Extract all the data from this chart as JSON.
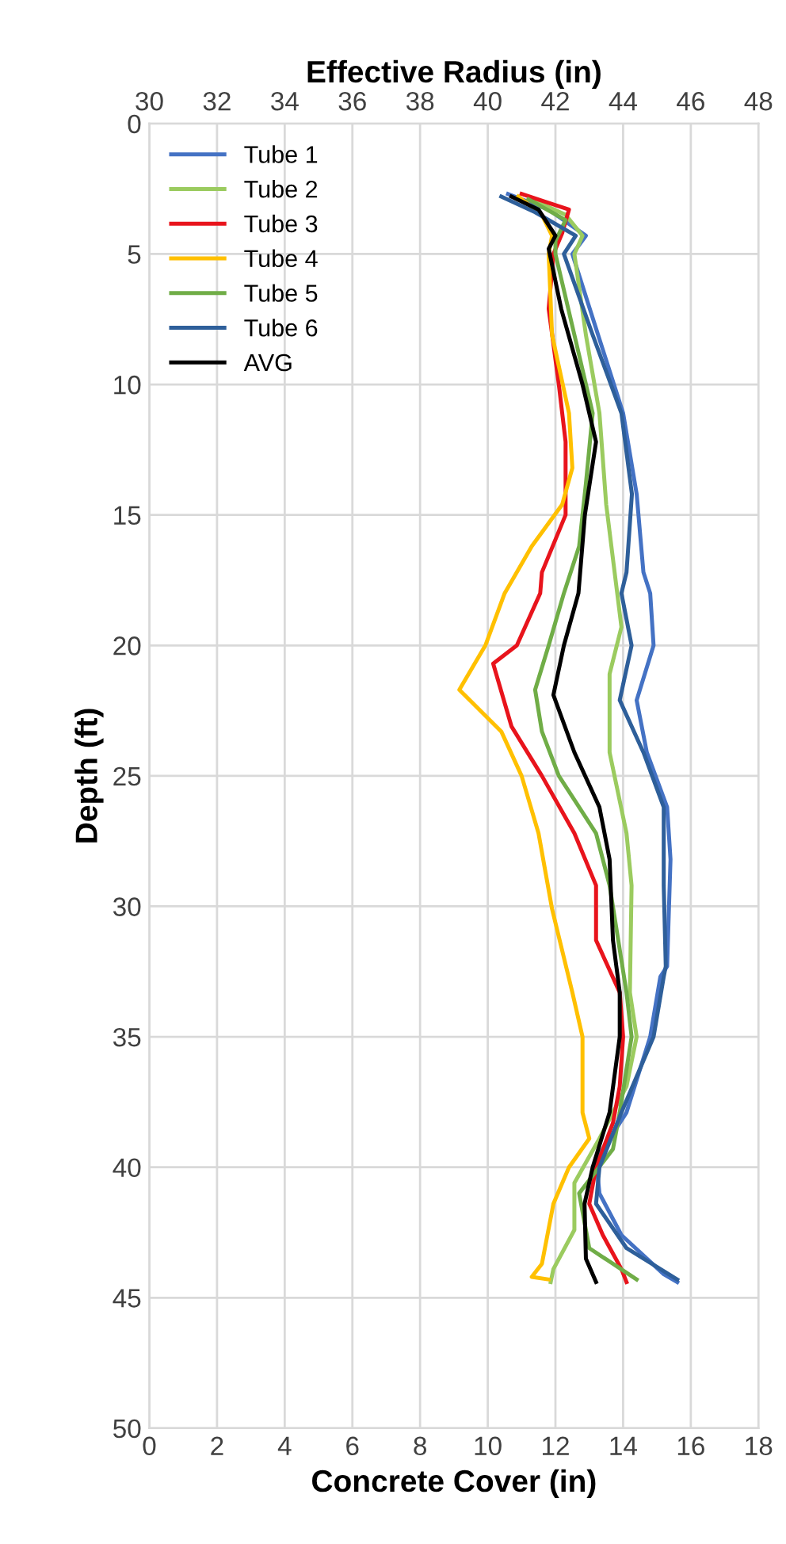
{
  "chart_data": {
    "type": "line",
    "xlabel": "Concrete Cover (in)",
    "x2label": "Effective Radius (in)",
    "ylabel": "Depth (ft)",
    "xlim": [
      0,
      18
    ],
    "xticks": [
      0,
      2,
      4,
      6,
      8,
      10,
      12,
      14,
      16,
      18
    ],
    "x2lim": [
      30,
      48
    ],
    "x2ticks": [
      30,
      32,
      34,
      36,
      38,
      40,
      42,
      44,
      46,
      48
    ],
    "ylim": [
      50,
      0
    ],
    "yticks": [
      0,
      5,
      10,
      15,
      20,
      25,
      30,
      35,
      40,
      45,
      50
    ],
    "grid": true,
    "legend": "top left",
    "marker": "none",
    "line_style": "solid",
    "series": [
      {
        "name": "Tube 1",
        "color": "#4472c4",
        "x": [
          10.6,
          11.8,
          12.9,
          12.5,
          13.26,
          14.0,
          14.4,
          14.6,
          14.8,
          14.9,
          14.4,
          14.7,
          15.3,
          15.4,
          15.3,
          15.1,
          14.8,
          14.1,
          13.2,
          13.3,
          13.95,
          15.2,
          15.6
        ],
        "values": [
          2.7,
          3.3,
          4.3,
          5,
          8.1,
          11.1,
          14.2,
          17.2,
          18.0,
          20,
          22.1,
          24.1,
          26.2,
          28.2,
          32.3,
          32.7,
          35,
          37.9,
          39.7,
          41.0,
          42.6,
          44.1,
          44.4
        ]
      },
      {
        "name": "Tube 2",
        "color": "#9bcb5f",
        "x": [
          11.3,
          12.3,
          12.8,
          12.56,
          12.9,
          13.3,
          13.5,
          13.95,
          13.6,
          13.6,
          14.1,
          14.25,
          14.2,
          14.4,
          14.1,
          13.3,
          12.56,
          12.56,
          11.94,
          11.86
        ],
        "values": [
          2.9,
          3.5,
          4.3,
          5,
          8.1,
          11.1,
          14.6,
          19.3,
          21.1,
          24.1,
          27.2,
          29.2,
          33.3,
          35,
          36.9,
          38.9,
          40.6,
          42.4,
          43.9,
          44.4
        ]
      },
      {
        "name": "Tube 3",
        "color": "#e8141c",
        "x": [
          11.0,
          12.4,
          12.2,
          11.94,
          11.8,
          12.1,
          12.3,
          12.3,
          11.6,
          11.55,
          10.86,
          10.16,
          10.7,
          11.6,
          12.56,
          13.2,
          13.2,
          13.9,
          14.0,
          13.9,
          13.7,
          13.2,
          13.0,
          13.4,
          13.95,
          14.1
        ],
        "values": [
          2.7,
          3.3,
          4.2,
          5,
          7.1,
          10.0,
          12.2,
          15.0,
          17.2,
          18.0,
          20,
          20.7,
          23.1,
          25,
          27.2,
          29.2,
          31.3,
          33.3,
          35,
          36.9,
          38.3,
          40.0,
          41.4,
          42.6,
          43.9,
          44.4
        ]
      },
      {
        "name": "Tube 4",
        "color": "#ffc000",
        "x": [
          10.9,
          11.6,
          11.9,
          11.8,
          11.9,
          12.4,
          12.5,
          12.2,
          11.3,
          10.5,
          9.93,
          9.16,
          10.4,
          11.0,
          11.5,
          11.9,
          12.5,
          12.8,
          12.8,
          13.0,
          12.4,
          11.94,
          11.6,
          11.3,
          11.8
        ],
        "values": [
          2.8,
          3.5,
          4.3,
          5,
          8.1,
          11.1,
          13.2,
          14.6,
          16.2,
          18.0,
          20,
          21.7,
          23.3,
          25,
          27.2,
          30.1,
          33.3,
          35,
          37.9,
          38.9,
          40.0,
          41.4,
          43.7,
          44.2,
          44.3
        ]
      },
      {
        "name": "Tube 5",
        "color": "#70ad47",
        "x": [
          11.2,
          12.3,
          12.0,
          12.0,
          12.56,
          13.1,
          12.9,
          12.7,
          12.25,
          11.8,
          11.4,
          11.6,
          12.1,
          13.2,
          13.6,
          14.1,
          14.25,
          13.9,
          13.7,
          12.7,
          13.0,
          14.4
        ],
        "values": [
          2.9,
          3.7,
          4.5,
          5,
          8.1,
          11.1,
          13.8,
          16.2,
          18.0,
          20,
          21.7,
          23.3,
          25,
          27.2,
          29.2,
          33.3,
          35,
          37.9,
          39.3,
          41.0,
          43.1,
          44.3
        ]
      },
      {
        "name": "Tube 6",
        "color": "#2e5f9a",
        "x": [
          10.4,
          11.4,
          12.6,
          12.25,
          13.1,
          13.95,
          14.26,
          14.1,
          13.95,
          14.25,
          13.9,
          14.6,
          15.2,
          15.2,
          15.26,
          15.2,
          14.9,
          13.95,
          13.3,
          13.2,
          14.1,
          15.6
        ],
        "values": [
          2.8,
          3.4,
          4.3,
          5,
          8.1,
          11.1,
          14.2,
          17.2,
          18.0,
          20,
          22.1,
          24.1,
          26.2,
          29.2,
          32.3,
          32.7,
          35,
          37.9,
          40.0,
          41.4,
          43.1,
          44.3
        ]
      },
      {
        "name": "AVG",
        "color": "#000000",
        "x": [
          10.7,
          11.5,
          12.0,
          11.8,
          12.17,
          12.8,
          13.2,
          12.87,
          12.68,
          12.25,
          11.94,
          12.56,
          13.3,
          13.6,
          13.7,
          13.9,
          13.9,
          13.6,
          13.1,
          12.86,
          12.9,
          13.2
        ],
        "values": [
          2.8,
          3.3,
          4.3,
          4.8,
          7.1,
          10.0,
          12.2,
          15.0,
          18.0,
          20,
          21.9,
          24.1,
          26.2,
          28.2,
          31.3,
          33.3,
          35,
          37.9,
          40.0,
          41.4,
          43.5,
          44.4
        ]
      }
    ]
  }
}
